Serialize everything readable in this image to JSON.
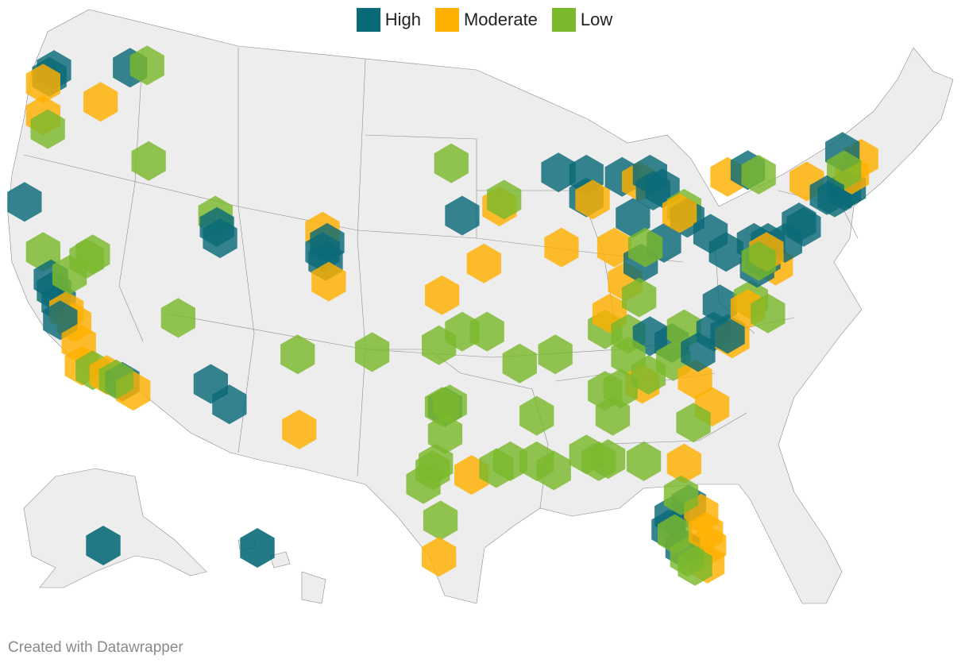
{
  "legend": {
    "items": [
      {
        "label": "High",
        "color": "#0b6a78"
      },
      {
        "label": "Moderate",
        "color": "#ffb000"
      },
      {
        "label": "Low",
        "color": "#7ab82c"
      }
    ]
  },
  "credit": "Created with Datawrapper",
  "map": {
    "land_color": "#ededed",
    "border_color": "#8c8c8c",
    "hexes": [
      {
        "level": "High",
        "lon": -122.3,
        "lat": 47.6
      },
      {
        "level": "High",
        "lon": -122.6,
        "lat": 47.3
      },
      {
        "level": "High",
        "lon": -117.4,
        "lat": 47.7
      },
      {
        "level": "Moderate",
        "lon": -123.0,
        "lat": 47.0
      },
      {
        "level": "Moderate",
        "lon": -119.3,
        "lat": 46.2
      },
      {
        "level": "Low",
        "lon": -116.3,
        "lat": 47.8
      },
      {
        "level": "Moderate",
        "lon": -123.0,
        "lat": 45.6
      },
      {
        "level": "Low",
        "lon": -122.7,
        "lat": 45.0
      },
      {
        "level": "Low",
        "lon": -116.2,
        "lat": 43.6
      },
      {
        "level": "High",
        "lon": -124.2,
        "lat": 41.8
      },
      {
        "level": "Low",
        "lon": -123.0,
        "lat": 39.6
      },
      {
        "level": "High",
        "lon": -122.5,
        "lat": 38.4
      },
      {
        "level": "High",
        "lon": -122.3,
        "lat": 37.9
      },
      {
        "level": "High",
        "lon": -122.0,
        "lat": 37.4
      },
      {
        "level": "Moderate",
        "lon": -121.5,
        "lat": 37.0
      },
      {
        "level": "Moderate",
        "lon": -121.0,
        "lat": 36.5
      },
      {
        "level": "High",
        "lon": -121.9,
        "lat": 36.6
      },
      {
        "level": "Moderate",
        "lon": -120.7,
        "lat": 35.6
      },
      {
        "level": "Low",
        "lon": -121.3,
        "lat": 38.6
      },
      {
        "level": "Low",
        "lon": -120.2,
        "lat": 39.3
      },
      {
        "level": "Moderate",
        "lon": -120.5,
        "lat": 34.6
      },
      {
        "level": "Low",
        "lon": -119.8,
        "lat": 34.4
      },
      {
        "level": "Moderate",
        "lon": -118.9,
        "lat": 34.2
      },
      {
        "level": "High",
        "lon": -117.9,
        "lat": 33.9
      },
      {
        "level": "Moderate",
        "lon": -117.2,
        "lat": 33.5
      },
      {
        "level": "Low",
        "lon": -118.3,
        "lat": 34.0
      },
      {
        "level": "Low",
        "lon": -119.8,
        "lat": 39.5
      },
      {
        "level": "Low",
        "lon": -114.3,
        "lat": 36.7
      },
      {
        "level": "Low",
        "lon": -111.9,
        "lat": 41.2
      },
      {
        "level": "High",
        "lon": -111.8,
        "lat": 40.7
      },
      {
        "level": "High",
        "lon": -111.6,
        "lat": 40.2
      },
      {
        "level": "High",
        "lon": -112.2,
        "lat": 33.8
      },
      {
        "level": "High",
        "lon": -111.0,
        "lat": 32.9
      },
      {
        "level": "Low",
        "lon": -106.6,
        "lat": 35.1
      },
      {
        "level": "Moderate",
        "lon": -106.5,
        "lat": 31.8
      },
      {
        "level": "Moderate",
        "lon": -105.0,
        "lat": 40.5
      },
      {
        "level": "High",
        "lon": -104.7,
        "lat": 40.0
      },
      {
        "level": "High",
        "lon": -105.0,
        "lat": 39.6
      },
      {
        "level": "High",
        "lon": -104.8,
        "lat": 39.2
      },
      {
        "level": "Moderate",
        "lon": -104.6,
        "lat": 38.3
      },
      {
        "level": "Low",
        "lon": -101.8,
        "lat": 35.2
      },
      {
        "level": "Low",
        "lon": -96.7,
        "lat": 43.5
      },
      {
        "level": "High",
        "lon": -96.0,
        "lat": 41.2
      },
      {
        "level": "Moderate",
        "lon": -97.3,
        "lat": 37.7
      },
      {
        "level": "Moderate",
        "lon": -94.6,
        "lat": 39.1
      },
      {
        "level": "Moderate",
        "lon": -93.6,
        "lat": 41.6
      },
      {
        "level": "Low",
        "lon": -93.3,
        "lat": 41.9
      },
      {
        "level": "Low",
        "lon": -97.5,
        "lat": 35.5
      },
      {
        "level": "Low",
        "lon": -96.0,
        "lat": 36.1
      },
      {
        "level": "Low",
        "lon": -94.4,
        "lat": 36.1
      },
      {
        "level": "Low",
        "lon": -92.3,
        "lat": 34.7
      },
      {
        "level": "Low",
        "lon": -90.0,
        "lat": 35.1
      },
      {
        "level": "High",
        "lon": -97.1,
        "lat": 32.8
      },
      {
        "level": "Low",
        "lon": -97.3,
        "lat": 32.8
      },
      {
        "level": "Low",
        "lon": -96.8,
        "lat": 32.9
      },
      {
        "level": "Low",
        "lon": -97.1,
        "lat": 31.6
      },
      {
        "level": "Low",
        "lon": -97.7,
        "lat": 30.3
      },
      {
        "level": "Moderate",
        "lon": -95.4,
        "lat": 29.8
      },
      {
        "level": "Low",
        "lon": -97.9,
        "lat": 30.0
      },
      {
        "level": "Low",
        "lon": -98.5,
        "lat": 29.4
      },
      {
        "level": "Low",
        "lon": -97.4,
        "lat": 27.8
      },
      {
        "level": "Moderate",
        "lon": -97.5,
        "lat": 26.2
      },
      {
        "level": "Low",
        "lon": -91.2,
        "lat": 32.4
      },
      {
        "level": "Low",
        "lon": -91.2,
        "lat": 30.4
      },
      {
        "level": "Low",
        "lon": -90.1,
        "lat": 30.0
      },
      {
        "level": "Low",
        "lon": -93.8,
        "lat": 30.1
      },
      {
        "level": "Low",
        "lon": -92.9,
        "lat": 30.4
      },
      {
        "level": "High",
        "lon": -89.8,
        "lat": 43.1
      },
      {
        "level": "High",
        "lon": -88.0,
        "lat": 43.0
      },
      {
        "level": "High",
        "lon": -88.0,
        "lat": 42.0
      },
      {
        "level": "Moderate",
        "lon": -87.6,
        "lat": 41.9
      },
      {
        "level": "Moderate",
        "lon": -89.6,
        "lat": 39.8
      },
      {
        "level": "High",
        "lon": -85.7,
        "lat": 42.9
      },
      {
        "level": "Moderate",
        "lon": -84.6,
        "lat": 42.7
      },
      {
        "level": "High",
        "lon": -83.7,
        "lat": 42.3
      },
      {
        "level": "High",
        "lon": -83.1,
        "lat": 42.4
      },
      {
        "level": "High",
        "lon": -83.9,
        "lat": 43.0
      },
      {
        "level": "High",
        "lon": -85.0,
        "lat": 41.1
      },
      {
        "level": "Moderate",
        "lon": -86.2,
        "lat": 39.8
      },
      {
        "level": "Moderate",
        "lon": -85.5,
        "lat": 38.3
      },
      {
        "level": "High",
        "lon": -84.5,
        "lat": 39.1
      },
      {
        "level": "High",
        "lon": -83.0,
        "lat": 40.0
      },
      {
        "level": "Low",
        "lon": -84.2,
        "lat": 39.8
      },
      {
        "level": "Low",
        "lon": -81.7,
        "lat": 41.5
      },
      {
        "level": "High",
        "lon": -81.5,
        "lat": 41.1
      },
      {
        "level": "Moderate",
        "lon": -82.0,
        "lat": 41.3
      },
      {
        "level": "High",
        "lon": -80.0,
        "lat": 40.4
      },
      {
        "level": "High",
        "lon": -79.0,
        "lat": 39.6
      },
      {
        "level": "Low",
        "lon": -86.8,
        "lat": 36.2
      },
      {
        "level": "Moderate",
        "lon": -86.5,
        "lat": 36.9
      },
      {
        "level": "Low",
        "lon": -85.3,
        "lat": 36.0
      },
      {
        "level": "Low",
        "lon": -84.6,
        "lat": 37.6
      },
      {
        "level": "High",
        "lon": -83.9,
        "lat": 35.9
      },
      {
        "level": "High",
        "lon": -82.5,
        "lat": 35.6
      },
      {
        "level": "Low",
        "lon": -81.7,
        "lat": 36.2
      },
      {
        "level": "Low",
        "lon": -85.3,
        "lat": 35.0
      },
      {
        "level": "Moderate",
        "lon": -84.4,
        "lat": 33.8
      },
      {
        "level": "Low",
        "lon": -84.0,
        "lat": 34.2
      },
      {
        "level": "Low",
        "lon": -85.8,
        "lat": 33.6
      },
      {
        "level": "Low",
        "lon": -86.8,
        "lat": 33.5
      },
      {
        "level": "Low",
        "lon": -86.6,
        "lat": 30.5
      },
      {
        "level": "Low",
        "lon": -86.3,
        "lat": 32.4
      },
      {
        "level": "Low",
        "lon": -88.0,
        "lat": 30.7
      },
      {
        "level": "Low",
        "lon": -87.2,
        "lat": 30.4
      },
      {
        "level": "Low",
        "lon": -84.3,
        "lat": 30.4
      },
      {
        "level": "Low",
        "lon": -82.4,
        "lat": 34.8
      },
      {
        "level": "Moderate",
        "lon": -81.0,
        "lat": 34.0
      },
      {
        "level": "Moderate",
        "lon": -79.9,
        "lat": 32.8
      },
      {
        "level": "Low",
        "lon": -81.1,
        "lat": 32.1
      },
      {
        "level": "High",
        "lon": -80.8,
        "lat": 35.2
      },
      {
        "level": "High",
        "lon": -79.8,
        "lat": 36.1
      },
      {
        "level": "Moderate",
        "lon": -78.6,
        "lat": 35.8
      },
      {
        "level": "High",
        "lon": -79.4,
        "lat": 37.3
      },
      {
        "level": "High",
        "lon": -78.9,
        "lat": 36.0
      },
      {
        "level": "Low",
        "lon": -77.4,
        "lat": 37.5
      },
      {
        "level": "Moderate",
        "lon": -77.6,
        "lat": 37.1
      },
      {
        "level": "Low",
        "lon": -76.3,
        "lat": 36.9
      },
      {
        "level": "Moderate",
        "lon": -75.8,
        "lat": 39.0
      },
      {
        "level": "High",
        "lon": -77.0,
        "lat": 38.9
      },
      {
        "level": "High",
        "lon": -76.6,
        "lat": 39.3
      },
      {
        "level": "High",
        "lon": -75.2,
        "lat": 40.0
      },
      {
        "level": "High",
        "lon": -77.2,
        "lat": 40.0
      },
      {
        "level": "High",
        "lon": -76.3,
        "lat": 40.0
      },
      {
        "level": "Moderate",
        "lon": -76.4,
        "lat": 39.6
      },
      {
        "level": "Low",
        "lon": -76.9,
        "lat": 39.2
      },
      {
        "level": "High",
        "lon": -74.0,
        "lat": 40.7
      },
      {
        "level": "High",
        "lon": -74.3,
        "lat": 40.9
      },
      {
        "level": "Moderate",
        "lon": -78.9,
        "lat": 42.9
      },
      {
        "level": "High",
        "lon": -77.6,
        "lat": 43.2
      },
      {
        "level": "Low",
        "lon": -76.9,
        "lat": 43.0
      },
      {
        "level": "Moderate",
        "lon": -73.8,
        "lat": 42.7
      },
      {
        "level": "High",
        "lon": -71.4,
        "lat": 42.3
      },
      {
        "level": "High",
        "lon": -71.1,
        "lat": 42.4
      },
      {
        "level": "High",
        "lon": -72.0,
        "lat": 42.0
      },
      {
        "level": "Moderate",
        "lon": -70.9,
        "lat": 43.0
      },
      {
        "level": "Moderate",
        "lon": -70.3,
        "lat": 43.7
      },
      {
        "level": "High",
        "lon": -71.5,
        "lat": 44.0
      },
      {
        "level": "Low",
        "lon": -71.4,
        "lat": 43.2
      },
      {
        "level": "High",
        "lon": -72.5,
        "lat": 42.1
      },
      {
        "level": "High",
        "lon": -82.5,
        "lat": 28.0
      },
      {
        "level": "High",
        "lon": -81.4,
        "lat": 28.5
      },
      {
        "level": "Moderate",
        "lon": -81.7,
        "lat": 30.3
      },
      {
        "level": "Moderate",
        "lon": -80.6,
        "lat": 28.1
      },
      {
        "level": "Moderate",
        "lon": -80.1,
        "lat": 26.7
      },
      {
        "level": "Moderate",
        "lon": -80.2,
        "lat": 25.9
      },
      {
        "level": "High",
        "lon": -82.7,
        "lat": 27.4
      },
      {
        "level": "High",
        "lon": -81.8,
        "lat": 26.6
      },
      {
        "level": "Low",
        "lon": -82.3,
        "lat": 27.2
      },
      {
        "level": "Low",
        "lon": -81.5,
        "lat": 26.2
      },
      {
        "level": "Low",
        "lon": -81.0,
        "lat": 25.8
      },
      {
        "level": "Moderate",
        "lon": -80.3,
        "lat": 27.3
      },
      {
        "level": "Low",
        "lon": -81.9,
        "lat": 28.9
      }
    ],
    "extra_hexes": [
      {
        "level": "High",
        "region": "alaska",
        "name": "Anchorage"
      },
      {
        "level": "High",
        "region": "hawaii",
        "name": "Honolulu"
      }
    ]
  }
}
